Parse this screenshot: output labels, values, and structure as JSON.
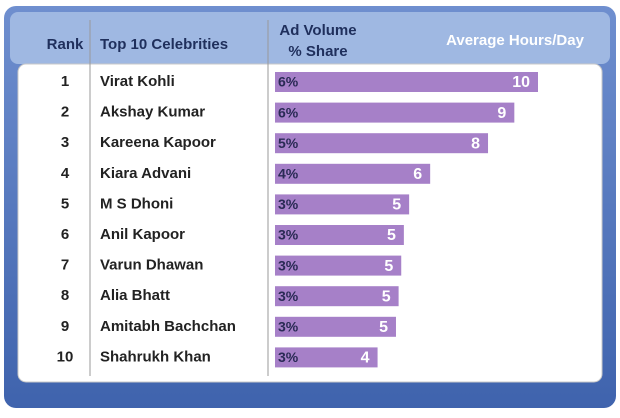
{
  "chart_data": {
    "type": "bar",
    "orientation": "horizontal",
    "headers": {
      "rank": "Rank",
      "name": "Top 10 Celebrities",
      "share": [
        "Ad Volume",
        "% Share"
      ],
      "hours": "Average Hours/Day"
    },
    "ranks": [
      1,
      2,
      3,
      4,
      5,
      6,
      7,
      8,
      9,
      10
    ],
    "categories": [
      "Virat Kohli",
      "Akshay Kumar",
      "Kareena Kapoor",
      "Kiara Advani",
      "M S Dhoni",
      "Anil Kapoor",
      "Varun Dhawan",
      "Alia Bhatt",
      "Amitabh Bachchan",
      "Shahrukh Khan"
    ],
    "share": [
      "6%",
      "6%",
      "5%",
      "4%",
      "3%",
      "3%",
      "3%",
      "3%",
      "3%",
      "3%"
    ],
    "values": [
      10.0,
      9.1,
      8.1,
      5.9,
      5.1,
      4.9,
      4.8,
      4.7,
      4.6,
      3.9
    ],
    "value_labels": [
      "10",
      "9",
      "8",
      "6",
      "5",
      "5",
      "5",
      "5",
      "5",
      "4"
    ],
    "color": "#a680c8"
  }
}
